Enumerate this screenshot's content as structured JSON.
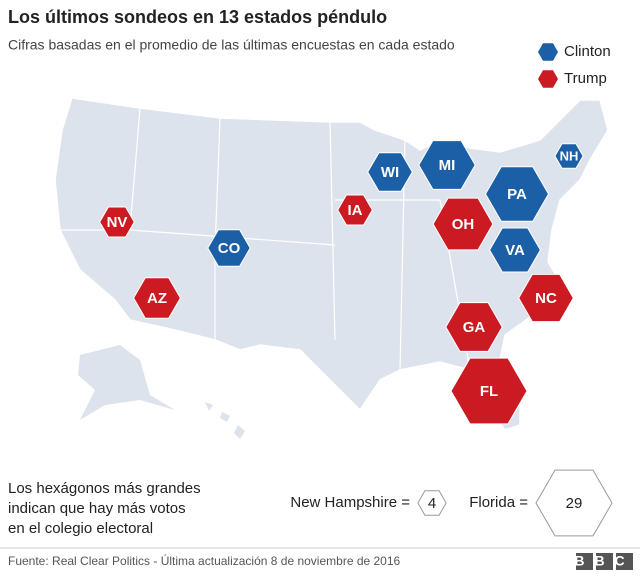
{
  "header": {
    "title": "Los últimos sondeos en 13 estados péndulo",
    "subtitle": "Cifras basadas en el promedio de las últimas encuestas en cada estado"
  },
  "legend": [
    {
      "name": "Clinton",
      "color": "#1b5fa6"
    },
    {
      "name": "Trump",
      "color": "#cc1a22"
    }
  ],
  "states": [
    {
      "label": "NV",
      "color": "#cc1a22",
      "votes": 6
    },
    {
      "label": "AZ",
      "color": "#cc1a22",
      "votes": 11
    },
    {
      "label": "CO",
      "color": "#1b5fa6",
      "votes": 9
    },
    {
      "label": "IA",
      "color": "#cc1a22",
      "votes": 6
    },
    {
      "label": "WI",
      "color": "#1b5fa6",
      "votes": 10
    },
    {
      "label": "MI",
      "color": "#1b5fa6",
      "votes": 16
    },
    {
      "label": "OH",
      "color": "#cc1a22",
      "votes": 18
    },
    {
      "label": "PA",
      "color": "#1b5fa6",
      "votes": 20
    },
    {
      "label": "VA",
      "color": "#1b5fa6",
      "votes": 13
    },
    {
      "label": "NC",
      "color": "#cc1a22",
      "votes": 15
    },
    {
      "label": "GA",
      "color": "#cc1a22",
      "votes": 16
    },
    {
      "label": "FL",
      "color": "#cc1a22",
      "votes": 29
    },
    {
      "label": "NH",
      "color": "#1b5fa6",
      "votes": 4
    }
  ],
  "description": [
    "Los hexágonos más grandes",
    "indican que hay más votos",
    "en el colegio electoral"
  ],
  "key": [
    {
      "label": "New Hampshire =",
      "value": 4
    },
    {
      "label": "Florida =",
      "value": 29
    }
  ],
  "footer": {
    "source": "Fuente: Real Clear Politics - Última actualización 8 de noviembre de 2016",
    "logo": "BBC"
  }
}
